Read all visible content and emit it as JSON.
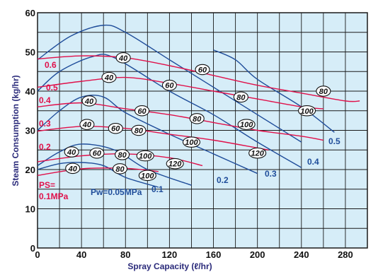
{
  "chart_data": {
    "type": "line",
    "xlabel": "Spray Capacity (ℓ/hr)",
    "ylabel": "Steam Consumption (kg/hr)",
    "xlim": [
      0,
      300
    ],
    "ylim": [
      0,
      60
    ],
    "xticks": [
      0,
      40,
      80,
      120,
      160,
      200,
      240,
      280
    ],
    "yticks": [
      0,
      10,
      20,
      30,
      40,
      50,
      60
    ],
    "grid": true,
    "colors": {
      "ps": "#e0104a",
      "pw": "#1f4d9a",
      "plot_bg": "#d6edf8",
      "grid": "#1a1a1a"
    },
    "ps_series": [
      {
        "name": "PS=",
        "name2": "0.1MPa",
        "points": [
          [
            0,
            18.5
          ],
          [
            40,
            20.2
          ],
          [
            80,
            20.3
          ],
          [
            110,
            19.5
          ]
        ]
      },
      {
        "name": "0.2",
        "points": [
          [
            0,
            22
          ],
          [
            40,
            23.5
          ],
          [
            80,
            24
          ],
          [
            120,
            23
          ],
          [
            150,
            21
          ]
        ]
      },
      {
        "name": "0.3",
        "points": [
          [
            0,
            29.8
          ],
          [
            40,
            31
          ],
          [
            80,
            30.5
          ],
          [
            120,
            29
          ],
          [
            160,
            27.5
          ],
          [
            200,
            25.5
          ],
          [
            210,
            25
          ]
        ]
      },
      {
        "name": "0.4",
        "points": [
          [
            0,
            36
          ],
          [
            40,
            37
          ],
          [
            80,
            35.5
          ],
          [
            120,
            34
          ],
          [
            160,
            32
          ],
          [
            200,
            30
          ],
          [
            240,
            28.5
          ],
          [
            260,
            27.5
          ]
        ]
      },
      {
        "name": "0.5",
        "points": [
          [
            0,
            41
          ],
          [
            40,
            42.5
          ],
          [
            80,
            43.5
          ],
          [
            120,
            42
          ],
          [
            160,
            40
          ],
          [
            200,
            38
          ],
          [
            240,
            36
          ],
          [
            260,
            35.5
          ]
        ]
      },
      {
        "name": "0.6",
        "points": [
          [
            0,
            48.2
          ],
          [
            40,
            49
          ],
          [
            80,
            48.5
          ],
          [
            120,
            46.5
          ],
          [
            160,
            44
          ],
          [
            200,
            41.5
          ],
          [
            240,
            39.5
          ],
          [
            280,
            37.5
          ],
          [
            293,
            37.5
          ]
        ]
      }
    ],
    "pw_series": [
      {
        "name": "Pw=0.05MPa",
        "points": [
          [
            0,
            20
          ],
          [
            20,
            21.5
          ],
          [
            40,
            21.8
          ],
          [
            60,
            21
          ],
          [
            80,
            18
          ],
          [
            110,
            15.5
          ]
        ]
      },
      {
        "name": "0.1",
        "points": [
          [
            0,
            21
          ],
          [
            20,
            24.5
          ],
          [
            40,
            26.5
          ],
          [
            70,
            25
          ],
          [
            100,
            20
          ],
          [
            140,
            16
          ]
        ]
      },
      {
        "name": "0.2",
        "points": [
          [
            0,
            30
          ],
          [
            20,
            35
          ],
          [
            40,
            38.5
          ],
          [
            60,
            38.5
          ],
          [
            80,
            34.5
          ],
          [
            120,
            29
          ],
          [
            160,
            24
          ],
          [
            200,
            19
          ]
        ]
      },
      {
        "name": "0.3",
        "points": [
          [
            0,
            40
          ],
          [
            20,
            45
          ],
          [
            50,
            48.8
          ],
          [
            70,
            48.5
          ],
          [
            120,
            40
          ],
          [
            160,
            34
          ],
          [
            200,
            27
          ],
          [
            240,
            20.5
          ]
        ]
      },
      {
        "name": "0.4",
        "points": [
          [
            0,
            48
          ],
          [
            30,
            54
          ],
          [
            60,
            56.8
          ],
          [
            80,
            55
          ],
          [
            120,
            48
          ],
          [
            160,
            41
          ],
          [
            200,
            34
          ],
          [
            240,
            27
          ]
        ]
      },
      {
        "name": "0.5",
        "points": [
          [
            160,
            50.5
          ],
          [
            180,
            48
          ],
          [
            200,
            43
          ],
          [
            240,
            36
          ],
          [
            270,
            29.5
          ]
        ]
      }
    ],
    "pw_label_text": "Pw=0.05MPa",
    "ovals": [
      "40",
      "80",
      "100",
      "40",
      "60",
      "80",
      "100",
      "120",
      "40",
      "60",
      "80",
      "100",
      "120",
      "40",
      "60",
      "80",
      "100",
      "40",
      "60",
      "80",
      "100",
      "40",
      "60",
      "80"
    ]
  }
}
